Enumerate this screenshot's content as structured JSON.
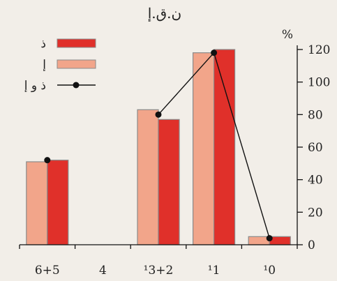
{
  "chart_data": {
    "type": "bar",
    "title": "ن.ق.إ",
    "ylabel": "%",
    "ylim": [
      0,
      120
    ],
    "yticks": [
      0,
      20,
      40,
      60,
      80,
      100,
      120
    ],
    "y_axis_side": "right",
    "categories": [
      "6+5",
      "4",
      "¹3+2",
      "¹1",
      "¹0"
    ],
    "series": [
      {
        "name": "إ",
        "kind": "bar",
        "color": "#f2a58a",
        "values": [
          51,
          null,
          83,
          118,
          5
        ]
      },
      {
        "name": "ذ",
        "kind": "bar",
        "color": "#e0302a",
        "values": [
          52,
          null,
          77,
          120,
          5
        ]
      },
      {
        "name": "ذ و إ",
        "kind": "line",
        "color": "#111111",
        "values": [
          52,
          null,
          80,
          118,
          4
        ]
      }
    ],
    "legend_position": "top-left",
    "grid": false
  }
}
